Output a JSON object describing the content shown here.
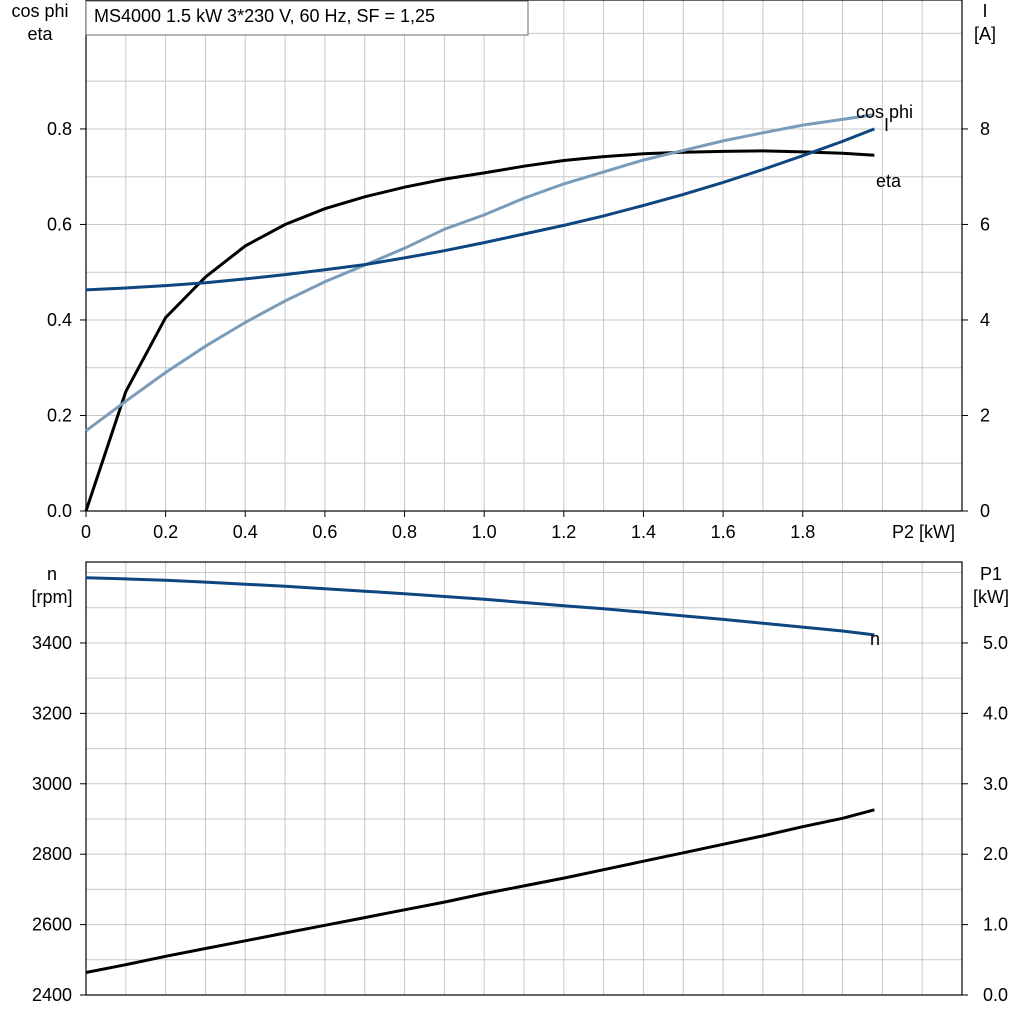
{
  "header": {
    "title": "MS4000   1.5 kW   3*230 V, 60 Hz, SF = 1,25"
  },
  "colors": {
    "eta": "#000000",
    "cos_phi": "#7a9cbb",
    "current": "#0d4680",
    "speed": "#0d4680",
    "p1": "#000000",
    "grid": "#c8c8c8"
  },
  "chart_data": [
    {
      "type": "line",
      "x": [
        0.0,
        0.1,
        0.2,
        0.3,
        0.4,
        0.5,
        0.6,
        0.7,
        0.8,
        0.9,
        1.0,
        1.1,
        1.2,
        1.3,
        1.4,
        1.5,
        1.6,
        1.7,
        1.8,
        1.9,
        1.98
      ],
      "xlabel": "P2 [kW]",
      "xticks": [
        "0",
        "0.2",
        "0.4",
        "0.6",
        "0.8",
        "1.0",
        "1.2",
        "1.4",
        "1.6",
        "1.8"
      ],
      "xlim": [
        0,
        2.2
      ],
      "ylabel_left": [
        "cos phi",
        "eta"
      ],
      "ylim_left": [
        0,
        1.07
      ],
      "yticks_left": [
        "0.0",
        "0.2",
        "0.4",
        "0.6",
        "0.8"
      ],
      "ylabel_right": [
        "I",
        "[A]"
      ],
      "ylim_right": [
        0,
        10.7
      ],
      "yticks_right": [
        "0",
        "2",
        "4",
        "6",
        "8"
      ],
      "grid": true,
      "series": [
        {
          "name": "eta",
          "axis": "left",
          "values": [
            0.0,
            0.25,
            0.405,
            0.49,
            0.555,
            0.6,
            0.633,
            0.658,
            0.678,
            0.695,
            0.708,
            0.722,
            0.734,
            0.742,
            0.748,
            0.751,
            0.753,
            0.754,
            0.752,
            0.749,
            0.745
          ]
        },
        {
          "name": "cos phi",
          "axis": "left",
          "values": [
            0.168,
            0.23,
            0.29,
            0.345,
            0.395,
            0.44,
            0.48,
            0.515,
            0.55,
            0.59,
            0.62,
            0.655,
            0.685,
            0.71,
            0.735,
            0.755,
            0.775,
            0.792,
            0.808,
            0.82,
            0.83
          ]
        },
        {
          "name": "I",
          "axis": "right",
          "values": [
            4.63,
            4.67,
            4.72,
            4.78,
            4.86,
            4.95,
            5.05,
            5.16,
            5.3,
            5.45,
            5.62,
            5.8,
            5.98,
            6.18,
            6.4,
            6.63,
            6.88,
            7.15,
            7.44,
            7.74,
            8.0
          ]
        }
      ],
      "annotations": [
        "cos phi",
        "I",
        "eta"
      ]
    },
    {
      "type": "line",
      "x": [
        0.0,
        0.1,
        0.2,
        0.3,
        0.4,
        0.5,
        0.6,
        0.7,
        0.8,
        0.9,
        1.0,
        1.1,
        1.2,
        1.3,
        1.4,
        1.5,
        1.6,
        1.7,
        1.8,
        1.9,
        1.98
      ],
      "xlim": [
        0,
        2.2
      ],
      "ylabel_left": [
        "n",
        "[rpm]"
      ],
      "ylim_left": [
        2400,
        3630
      ],
      "yticks_left": [
        "2400",
        "2600",
        "2800",
        "3000",
        "3200",
        "3400"
      ],
      "ylabel_right": [
        "P1",
        "[kW]"
      ],
      "ylim_right": [
        0,
        6.15
      ],
      "yticks_right": [
        "0.0",
        "1.0",
        "2.0",
        "3.0",
        "4.0",
        "5.0"
      ],
      "grid": true,
      "series": [
        {
          "name": "n",
          "axis": "left",
          "values": [
            3585,
            3582,
            3578,
            3573,
            3567,
            3561,
            3554,
            3547,
            3540,
            3532,
            3524,
            3515,
            3506,
            3497,
            3487,
            3477,
            3467,
            3456,
            3445,
            3434,
            3423
          ]
        },
        {
          "name": "P1",
          "axis": "right",
          "values": [
            0.32,
            0.43,
            0.55,
            0.66,
            0.77,
            0.88,
            0.99,
            1.1,
            1.21,
            1.32,
            1.44,
            1.55,
            1.66,
            1.78,
            1.9,
            2.02,
            2.14,
            2.26,
            2.39,
            2.51,
            2.63
          ]
        }
      ],
      "annotations": [
        "n"
      ]
    }
  ]
}
